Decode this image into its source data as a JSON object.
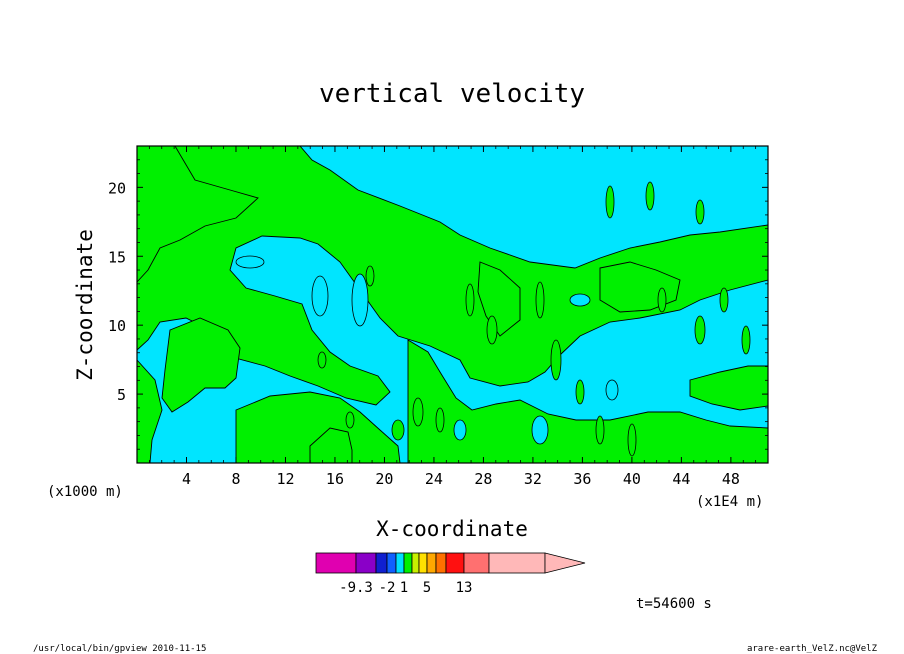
{
  "chart_data": {
    "type": "contour",
    "title": "vertical velocity",
    "xlabel": "X-coordinate",
    "ylabel": "Z-coordinate",
    "x_unit_left": "(x1000 m)",
    "x_unit_right": "(x1E4 m)",
    "xlim": [
      0,
      51
    ],
    "ylim": [
      0,
      23
    ],
    "x_ticks": [
      "4",
      "8",
      "12",
      "16",
      "20",
      "24",
      "28",
      "32",
      "36",
      "40",
      "44",
      "48"
    ],
    "x_tick_values": [
      4,
      8,
      12,
      16,
      20,
      24,
      28,
      32,
      36,
      40,
      44,
      48
    ],
    "y_ticks": [
      "5",
      "10",
      "15",
      "20"
    ],
    "y_tick_values": [
      5,
      10,
      15,
      20
    ],
    "fill_colors": {
      "negative": "#00e5ff",
      "positive": "#00f000"
    },
    "colorbar": {
      "colors": [
        "#e000b0",
        "#8a00c8",
        "#1020d0",
        "#1060ff",
        "#00e0ff",
        "#00f000",
        "#c8f000",
        "#ffe000",
        "#ffa800",
        "#ff7000",
        "#ff1010",
        "#ff7070",
        "#ffb8b8"
      ],
      "tick_labels": [
        "-9.3",
        "-2",
        "1",
        "5",
        "13"
      ],
      "tick_boundaries": [
        1,
        3,
        5,
        8,
        11
      ]
    },
    "time_label": "t=54600 s",
    "footer_left": "/usr/local/bin/gpview  2010-11-15",
    "footer_right": "arare-earth_VelZ.nc@VelZ"
  }
}
